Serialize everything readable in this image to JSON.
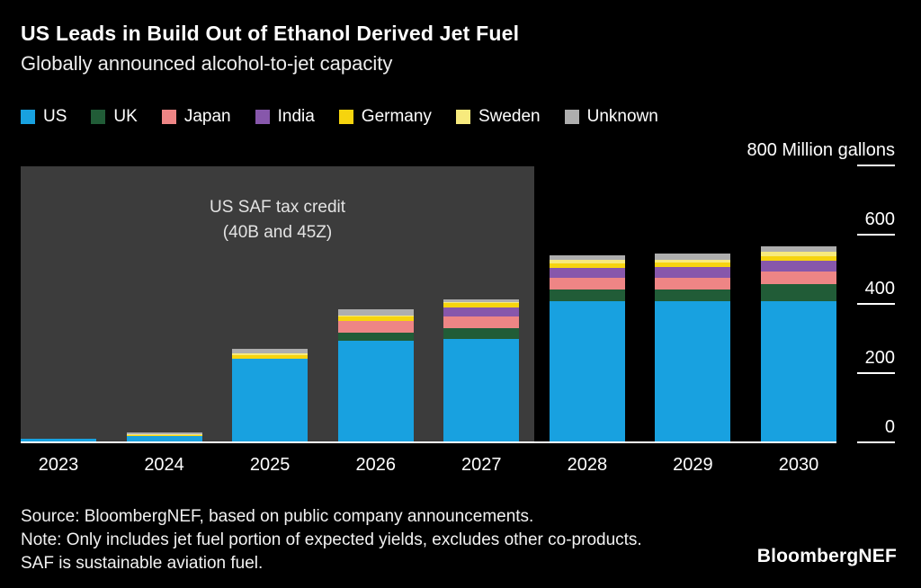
{
  "header": {
    "title": "US Leads in Build Out of Ethanol Derived Jet Fuel",
    "subtitle": "Globally announced alcohol-to-jet capacity"
  },
  "chart_data": {
    "type": "bar",
    "stacked": true,
    "title": "US Leads in Build Out of Ethanol Derived Jet Fuel",
    "subtitle": "Globally announced alcohol-to-jet capacity",
    "unit": "Million gallons",
    "categories": [
      "2023",
      "2024",
      "2025",
      "2026",
      "2027",
      "2028",
      "2029",
      "2030"
    ],
    "series": [
      {
        "name": "US",
        "color": "#18a1e0",
        "values": [
          8,
          15,
          240,
          290,
          295,
          405,
          405,
          405
        ]
      },
      {
        "name": "UK",
        "color": "#215c37",
        "values": [
          0,
          0,
          0,
          25,
          33,
          33,
          33,
          50
        ]
      },
      {
        "name": "Japan",
        "color": "#ee8585",
        "values": [
          0,
          0,
          0,
          33,
          33,
          34,
          34,
          36
        ]
      },
      {
        "name": "India",
        "color": "#8757ab",
        "values": [
          0,
          0,
          0,
          0,
          25,
          30,
          32,
          32
        ]
      },
      {
        "name": "Germany",
        "color": "#f6d40e",
        "values": [
          0,
          4,
          10,
          13,
          13,
          12,
          12,
          12
        ]
      },
      {
        "name": "Sweden",
        "color": "#f7ea7d",
        "values": [
          0,
          3,
          4,
          4,
          4,
          10,
          10,
          12
        ]
      },
      {
        "name": "Unknown",
        "color": "#aeaeae",
        "values": [
          0,
          4,
          14,
          18,
          8,
          15,
          16,
          18
        ]
      }
    ],
    "ylim": [
      0,
      800
    ],
    "yticks": [
      0,
      200,
      400,
      600
    ],
    "ytick_top": {
      "value": 800,
      "label": "800 Million gallons"
    },
    "grid": false,
    "legend_position": "top",
    "annotation": {
      "lines": [
        "US SAF tax credit",
        "(40B and 45Z)"
      ],
      "span_last_category": "2027"
    },
    "highlight_color": "#3c3c3c"
  },
  "footer": {
    "source": "Source: BloombergNEF, based on public company announcements.",
    "note": "Note: Only includes jet fuel portion of expected yields, excludes other co-products. SAF is sustainable aviation fuel."
  },
  "branding": {
    "logo": "BloombergNEF"
  }
}
